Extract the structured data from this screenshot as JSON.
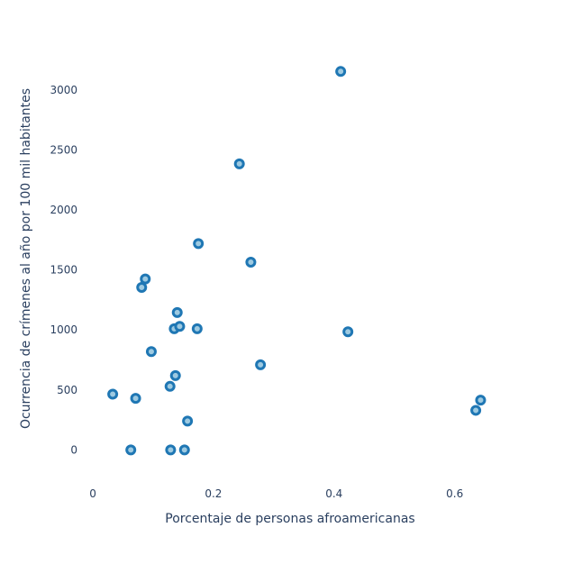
{
  "chart_data": {
    "type": "scatter",
    "title": "",
    "xlabel": "Porcentaje de personas afroamericanas",
    "ylabel": "Ocurrencia de crímenes al año por 100 mil habitantes",
    "xlim": [
      -0.012,
      0.72
    ],
    "ylim": [
      -230,
      3300
    ],
    "xticks": [
      0,
      0.2,
      0.4,
      0.6
    ],
    "xtick_labels": [
      "0",
      "0.2",
      "0.4",
      "0.6"
    ],
    "yticks": [
      0,
      500,
      1000,
      1500,
      2000,
      2500,
      3000
    ],
    "ytick_labels": [
      "0",
      "500",
      "1000",
      "1500",
      "2000",
      "2500",
      "3000"
    ],
    "grid": false,
    "legend": "none",
    "marker_fill": "#9ecae1",
    "marker_line": "#1f77b4",
    "series": [
      {
        "points": [
          {
            "x": 0.033,
            "y": 465
          },
          {
            "x": 0.063,
            "y": 0
          },
          {
            "x": 0.071,
            "y": 430
          },
          {
            "x": 0.081,
            "y": 1355
          },
          {
            "x": 0.087,
            "y": 1425
          },
          {
            "x": 0.097,
            "y": 820
          },
          {
            "x": 0.128,
            "y": 530
          },
          {
            "x": 0.129,
            "y": 0
          },
          {
            "x": 0.135,
            "y": 1010
          },
          {
            "x": 0.137,
            "y": 620
          },
          {
            "x": 0.14,
            "y": 1145
          },
          {
            "x": 0.144,
            "y": 1030
          },
          {
            "x": 0.152,
            "y": 0
          },
          {
            "x": 0.157,
            "y": 240
          },
          {
            "x": 0.173,
            "y": 1010
          },
          {
            "x": 0.175,
            "y": 1720
          },
          {
            "x": 0.243,
            "y": 2385
          },
          {
            "x": 0.262,
            "y": 1565
          },
          {
            "x": 0.278,
            "y": 710
          },
          {
            "x": 0.411,
            "y": 3155
          },
          {
            "x": 0.423,
            "y": 985
          },
          {
            "x": 0.635,
            "y": 330
          },
          {
            "x": 0.643,
            "y": 415
          }
        ]
      }
    ]
  }
}
